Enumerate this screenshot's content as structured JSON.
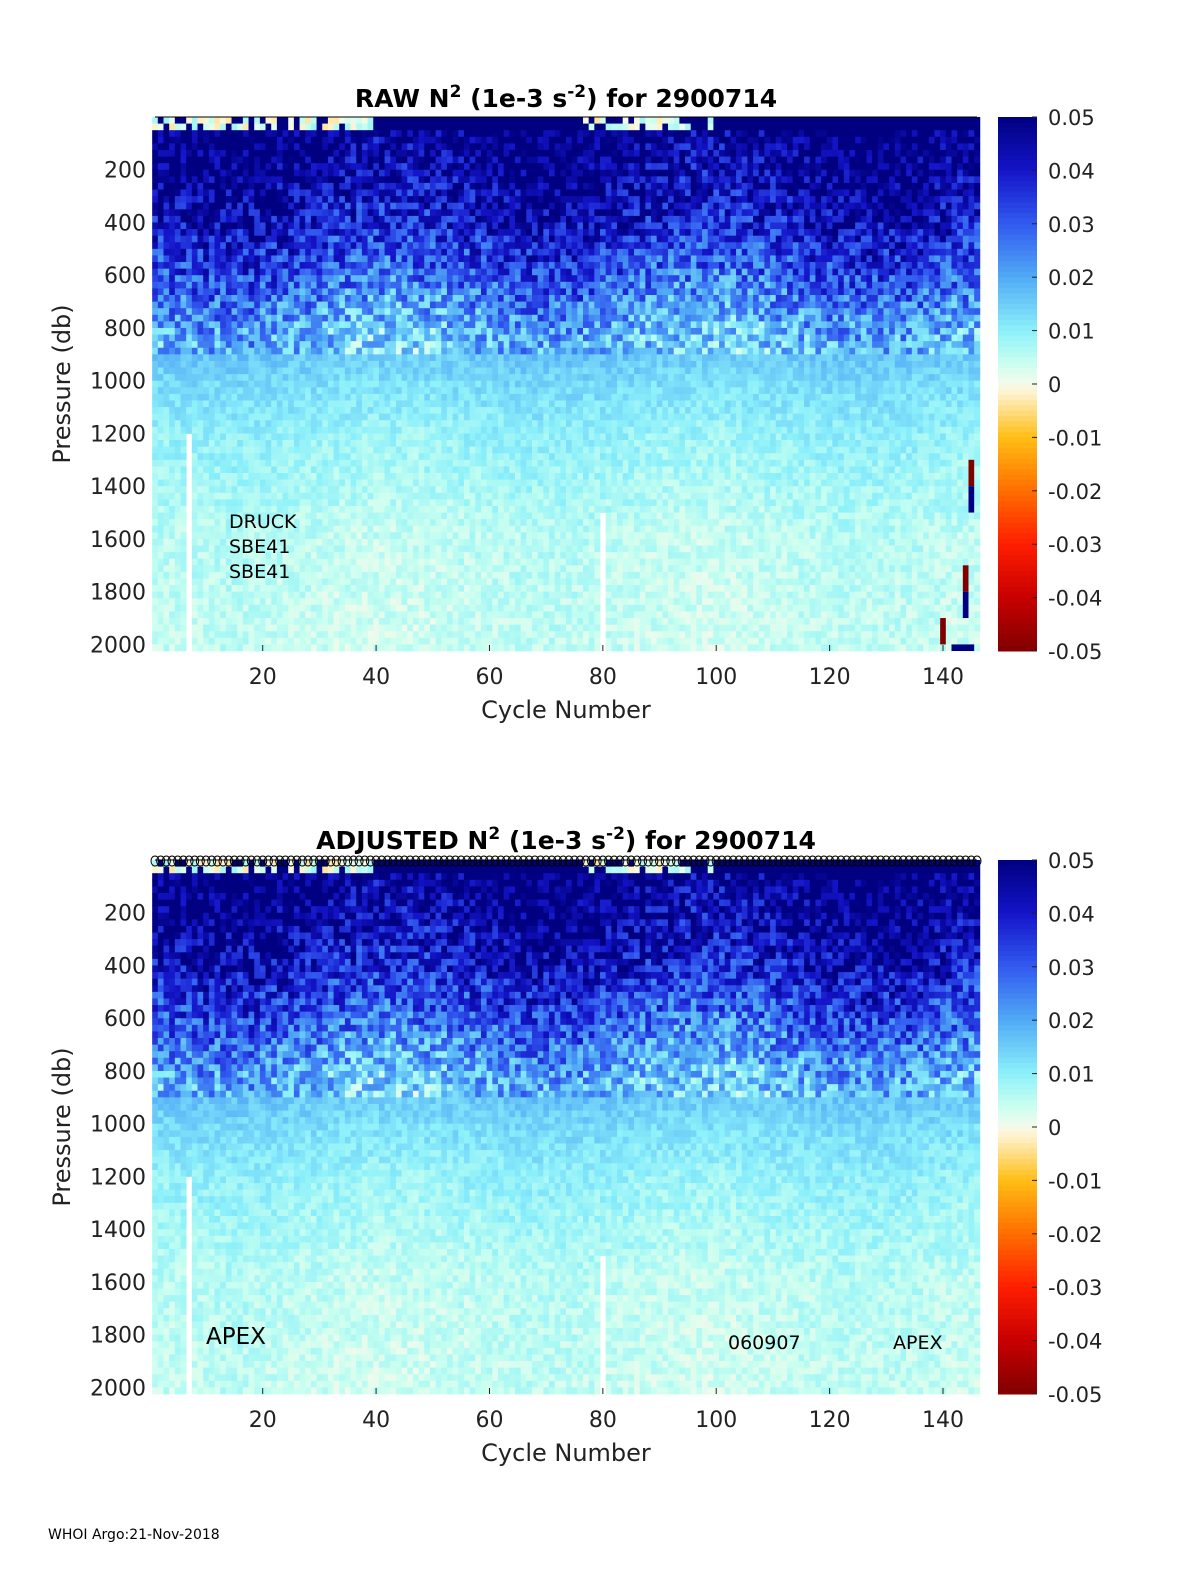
{
  "chart_data": [
    {
      "type": "heatmap",
      "title_main": "RAW N",
      "title_sup1": "2",
      "title_mid": " (1e-3 s",
      "title_sup2": "-2",
      "title_end": ") for 2900714",
      "xlabel": "Cycle Number",
      "ylabel": "Pressure (db)",
      "xlim": [
        1,
        146
      ],
      "ylim": [
        0,
        2025
      ],
      "xticks": [
        20,
        40,
        60,
        80,
        100,
        120,
        140
      ],
      "yticks": [
        200,
        400,
        600,
        800,
        1000,
        1200,
        1400,
        1600,
        1800,
        2000
      ],
      "clim": [
        -0.05,
        0.05
      ],
      "cticks": [
        "0.05",
        "0.04",
        "0.03",
        "0.02",
        "0.01",
        "0",
        "-0.01",
        "-0.02",
        "-0.03",
        "-0.04",
        "-0.05"
      ],
      "mean_profile": {
        "pressure": [
          0,
          50,
          200,
          400,
          600,
          800,
          1000,
          1200,
          1400,
          1600,
          2000
        ],
        "n2": [
          0.0,
          0.05,
          0.046,
          0.04,
          0.03,
          0.019,
          0.013,
          0.009,
          0.007,
          0.005,
          0.004
        ]
      },
      "gaps": [
        {
          "cycle": 7,
          "from_pressure": 1200
        },
        {
          "cycle": 80,
          "from_pressure": 1500
        }
      ],
      "anomalies": [
        {
          "cycle": 145,
          "p": [
            1300,
            1400
          ],
          "v": -0.05
        },
        {
          "cycle": 145,
          "p": [
            1400,
            1500
          ],
          "v": 0.05
        },
        {
          "cycle": 144,
          "p": [
            1700,
            1800
          ],
          "v": -0.05
        },
        {
          "cycle": 144,
          "p": [
            1800,
            1900
          ],
          "v": 0.05
        },
        {
          "cycle": 140,
          "p": [
            1900,
            2000
          ],
          "v": -0.05
        },
        {
          "cycle": 142,
          "p": [
            2000,
            2025
          ],
          "v": 0.05
        }
      ],
      "annotations": [
        "DRUCK",
        "SBE41",
        "SBE41"
      ],
      "seed": 7
    },
    {
      "type": "heatmap",
      "title_main": "ADJUSTED N",
      "title_sup1": "2",
      "title_mid": " (1e-3 s",
      "title_sup2": "-2",
      "title_end": ") for 2900714",
      "xlabel": "Cycle Number",
      "ylabel": "Pressure (db)",
      "xlim": [
        1,
        146
      ],
      "ylim": [
        0,
        2025
      ],
      "xticks": [
        20,
        40,
        60,
        80,
        100,
        120,
        140
      ],
      "yticks": [
        200,
        400,
        600,
        800,
        1000,
        1200,
        1400,
        1600,
        1800,
        2000
      ],
      "clim": [
        -0.05,
        0.05
      ],
      "cticks": [
        "0.05",
        "0.04",
        "0.03",
        "0.02",
        "0.01",
        "0",
        "-0.01",
        "-0.02",
        "-0.03",
        "-0.04",
        "-0.05"
      ],
      "mean_profile": {
        "pressure": [
          0,
          50,
          200,
          400,
          600,
          800,
          1000,
          1200,
          1400,
          1600,
          2000
        ],
        "n2": [
          0.0,
          0.05,
          0.046,
          0.04,
          0.03,
          0.019,
          0.013,
          0.009,
          0.007,
          0.005,
          0.004
        ]
      },
      "gaps": [
        {
          "cycle": 7,
          "from_pressure": 1200
        },
        {
          "cycle": 80,
          "from_pressure": 1500
        }
      ],
      "anomalies": [],
      "qc_markers": "circles at every cycle along top",
      "annotations": [
        "APEX",
        "060907",
        "APEX"
      ],
      "seed": 7
    }
  ],
  "footer": "WHOI Argo:21-Nov-2018"
}
